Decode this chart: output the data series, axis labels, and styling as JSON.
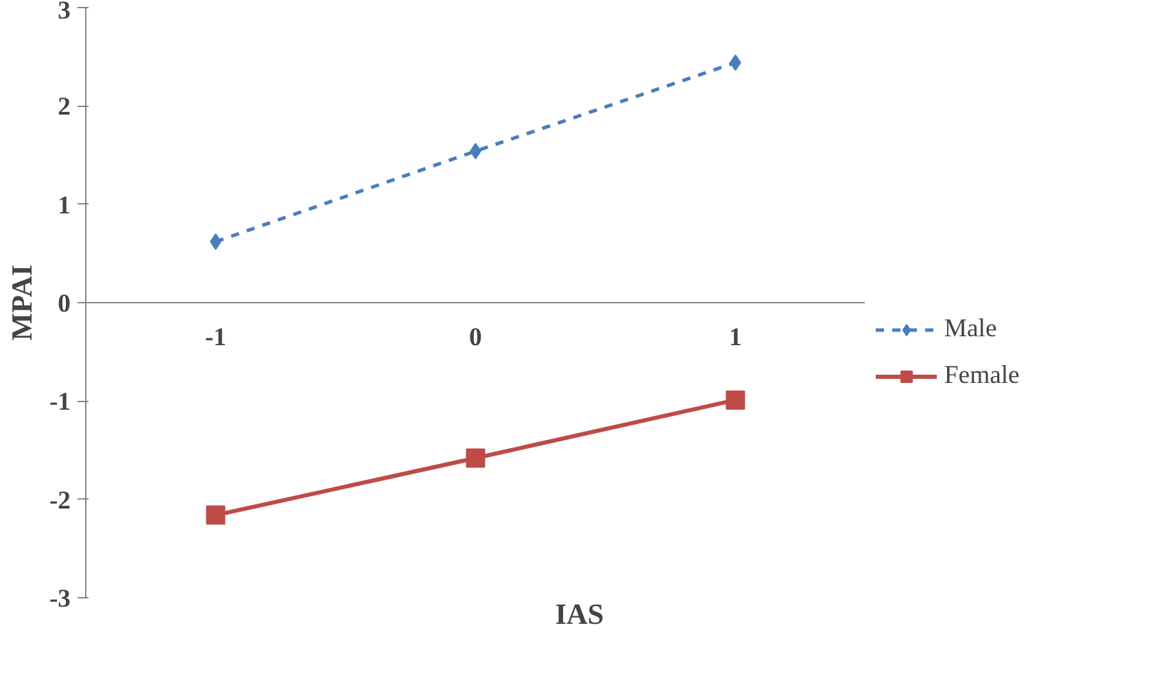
{
  "chart_data": {
    "type": "line",
    "xlabel": "IAS",
    "ylabel": "MPAI",
    "categories": [
      "-1",
      "0",
      "1"
    ],
    "series": [
      {
        "name": "Male",
        "color": "#4a7ebb",
        "values": [
          0.62,
          1.54,
          2.44
        ],
        "marker": "diamond",
        "line_style": "dashed"
      },
      {
        "name": "Female",
        "color": "#be4b48",
        "values": [
          -2.16,
          -1.58,
          -0.99
        ],
        "marker": "square",
        "line_style": "solid"
      }
    ],
    "ylim": [
      -3,
      3
    ],
    "yticks": [
      -3,
      -2,
      -1,
      0,
      1,
      2,
      3
    ],
    "grid": false,
    "legend": "right"
  }
}
